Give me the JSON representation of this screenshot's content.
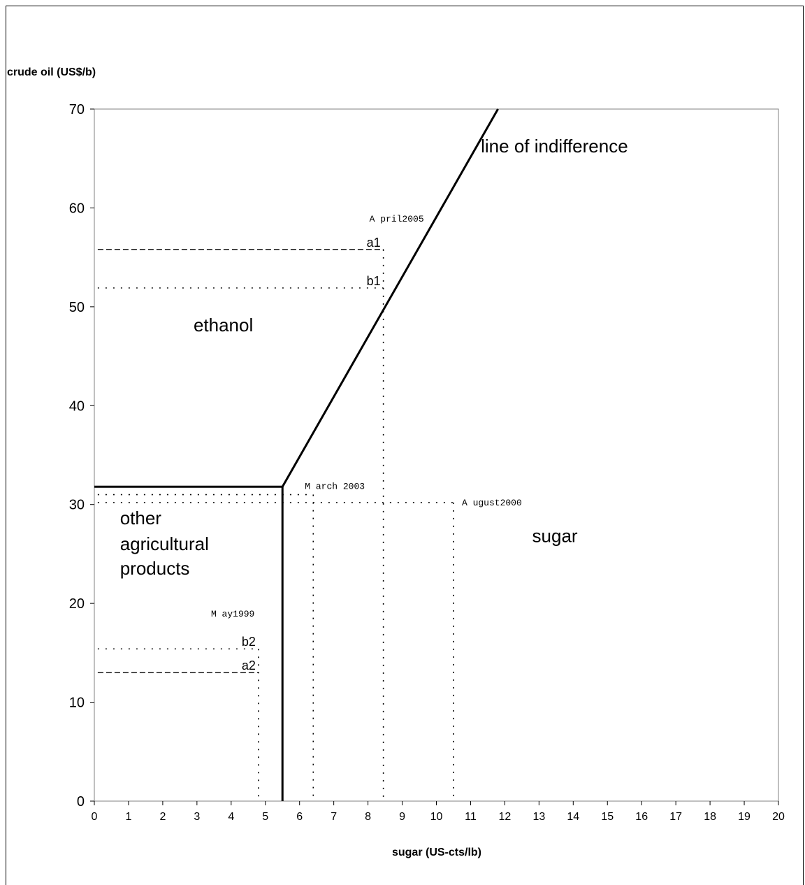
{
  "chart_data": {
    "type": "line",
    "ylabel": "crude oil (US$/b)",
    "xlabel": "sugar (US-cts/lb)",
    "xlim": [
      0,
      20
    ],
    "ylim": [
      0,
      70
    ],
    "x_ticks": [
      0,
      1,
      2,
      3,
      4,
      5,
      6,
      7,
      8,
      9,
      10,
      11,
      12,
      13,
      14,
      15,
      16,
      17,
      18,
      19,
      20
    ],
    "y_ticks": [
      0,
      10,
      20,
      30,
      40,
      50,
      60,
      70
    ],
    "grid": false,
    "boundaries": [
      {
        "id": "indifference",
        "points": [
          [
            5.5,
            31.8
          ],
          [
            11.8,
            70
          ]
        ]
      },
      {
        "id": "oil-threshold",
        "points": [
          [
            0,
            31.8
          ],
          [
            5.5,
            31.8
          ]
        ]
      },
      {
        "id": "sugar-threshold",
        "points": [
          [
            5.5,
            0
          ],
          [
            5.5,
            31.8
          ]
        ]
      }
    ],
    "regions": [
      {
        "label": "line of indifference",
        "x": 11.3,
        "y": 65.6
      },
      {
        "label": "ethanol",
        "x": 2.9,
        "y": 47.5
      },
      {
        "label": "sugar",
        "x": 12.8,
        "y": 26.2
      },
      {
        "label": "other",
        "x": 0.75,
        "y": 28
      },
      {
        "label": "agricultural",
        "x": 0.75,
        "y": 25.4
      },
      {
        "label": "products",
        "x": 0.75,
        "y": 22.9
      }
    ],
    "reference_points": [
      {
        "label": "a1",
        "x": 8.45,
        "y": 55.8,
        "style": "dashed",
        "horizontal_from": 0.1
      },
      {
        "label": "b1",
        "x": 8.45,
        "y": 51.9,
        "style": "dotted",
        "horizontal_from": 0.1
      },
      {
        "label": "a2",
        "x": 4.8,
        "y": 13.0,
        "style": "dashed",
        "horizontal_from": 0.1
      },
      {
        "label": "b2",
        "x": 4.8,
        "y": 15.4,
        "style": "dotted",
        "horizontal_from": 0.1
      }
    ],
    "markers": [
      {
        "label": "April 2005",
        "x": 8.45,
        "y_top": 55.8
      },
      {
        "label": "March 2003",
        "x": 6.4,
        "y_top": 31.0
      },
      {
        "label": "August 2000",
        "x": 10.5,
        "y_top": 30.2
      },
      {
        "label": "May 1999",
        "x": 4.8,
        "y_top": 15.4
      }
    ],
    "extra_levels": [
      {
        "y": 31.0,
        "x_to": 6.4,
        "style": "dotted"
      },
      {
        "y": 30.2,
        "x_to": 10.5,
        "style": "dotted"
      }
    ],
    "marker_label_text": {
      "April 2005": "A pril2005",
      "March 2003": "M arch 2003",
      "August 2000": "A ugust2000",
      "May 1999": "M ay1999"
    }
  }
}
